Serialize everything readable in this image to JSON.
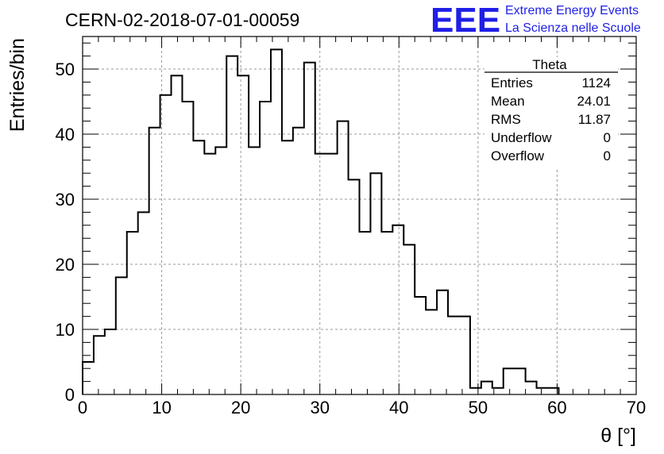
{
  "title": "CERN-02-2018-07-01-00059",
  "logo": {
    "mark": "EEE",
    "line1": "Extreme Energy Events",
    "line2": "La Scienza nelle Scuole",
    "color": "#1f1fe6"
  },
  "stats": {
    "name": "Theta",
    "rows": [
      {
        "label": "Entries",
        "value": "1124"
      },
      {
        "label": "Mean",
        "value": "24.01"
      },
      {
        "label": "RMS",
        "value": "11.87"
      },
      {
        "label": "Underflow",
        "value": "0"
      },
      {
        "label": "Overflow",
        "value": "0"
      }
    ]
  },
  "chart_data": {
    "type": "histogram",
    "title": "CERN-02-2018-07-01-00059",
    "xlabel": "θ [°]",
    "ylabel": "Entries/bin",
    "xlim": [
      0,
      70
    ],
    "ylim": [
      0,
      55
    ],
    "xticks": [
      0,
      10,
      20,
      30,
      40,
      50,
      60,
      70
    ],
    "yticks": [
      0,
      10,
      20,
      30,
      40,
      50
    ],
    "grid": true,
    "bin_width": 1.4,
    "bin_edges_start": 0,
    "values": [
      5,
      9,
      10,
      18,
      25,
      28,
      41,
      46,
      49,
      45,
      39,
      37,
      38,
      52,
      49,
      38,
      45,
      53,
      39,
      41,
      51,
      37,
      37,
      42,
      33,
      25,
      34,
      25,
      26,
      23,
      15,
      13,
      16,
      12,
      12,
      1,
      2,
      1,
      4,
      4,
      2,
      1,
      1
    ]
  }
}
